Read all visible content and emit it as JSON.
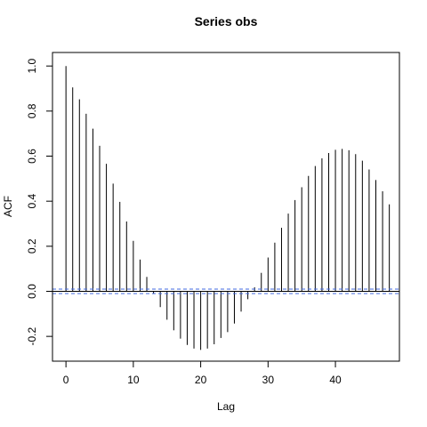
{
  "chart_data": {
    "type": "bar",
    "title": "Series  obs",
    "xlabel": "Lag",
    "ylabel": "ACF",
    "xlim": [
      -2,
      49.5
    ],
    "ylim": [
      -0.31,
      1.06
    ],
    "x_ticks": [
      0,
      10,
      20,
      30,
      40
    ],
    "y_ticks": [
      -0.2,
      0.0,
      0.2,
      0.4,
      0.6,
      0.8,
      1.0
    ],
    "x_tick_labels": [
      "0",
      "10",
      "20",
      "30",
      "40"
    ],
    "y_tick_labels": [
      "-0.2",
      "0.0",
      "0.2",
      "0.4",
      "0.6",
      "0.8",
      "1.0"
    ],
    "grid": false,
    "x": [
      0,
      1,
      2,
      3,
      4,
      5,
      6,
      7,
      8,
      9,
      10,
      11,
      12,
      13,
      14,
      15,
      16,
      17,
      18,
      19,
      20,
      21,
      22,
      23,
      24,
      25,
      26,
      27,
      28,
      29,
      30,
      31,
      32,
      33,
      34,
      35,
      36,
      37,
      38,
      39,
      40,
      41,
      42,
      43,
      44,
      45,
      46,
      47,
      48
    ],
    "values": [
      1.0,
      0.905,
      0.852,
      0.788,
      0.722,
      0.646,
      0.566,
      0.478,
      0.397,
      0.31,
      0.224,
      0.141,
      0.064,
      -0.01,
      -0.07,
      -0.126,
      -0.173,
      -0.21,
      -0.238,
      -0.254,
      -0.26,
      -0.254,
      -0.235,
      -0.207,
      -0.181,
      -0.143,
      -0.09,
      -0.035,
      0.018,
      0.082,
      0.15,
      0.216,
      0.282,
      0.345,
      0.405,
      0.462,
      0.512,
      0.556,
      0.59,
      0.614,
      0.628,
      0.632,
      0.626,
      0.609,
      0.58,
      0.541,
      0.494,
      0.444,
      0.386
    ],
    "confidence_limit": 0.01,
    "colors": {
      "bars": "#000000",
      "ci_line": "#4169e1",
      "zero_line": "#000000",
      "axes": "#000000"
    }
  }
}
